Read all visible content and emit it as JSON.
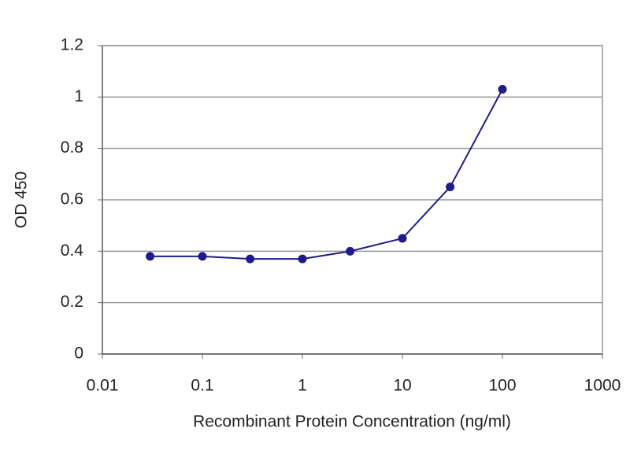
{
  "chart_data": {
    "type": "line",
    "x_label": "Recombinant Protein Concentration (ng/ml)",
    "y_label": "OD 450",
    "xscale": "log",
    "grid": true,
    "xlim": [
      0.01,
      1000
    ],
    "xticks": [
      0.01,
      0.1,
      1,
      10,
      100,
      1000
    ],
    "ylim": [
      0,
      1.2
    ],
    "yticks": [
      0,
      0.2,
      0.4,
      0.6,
      0.8,
      1,
      1.2
    ],
    "series": [
      {
        "color": "#1c1c8a",
        "x": [
          0.03,
          0.1,
          0.3,
          1,
          3,
          10,
          30,
          100
        ],
        "values": [
          0.38,
          0.38,
          0.37,
          0.37,
          0.4,
          0.45,
          0.65,
          1.03
        ]
      }
    ]
  }
}
